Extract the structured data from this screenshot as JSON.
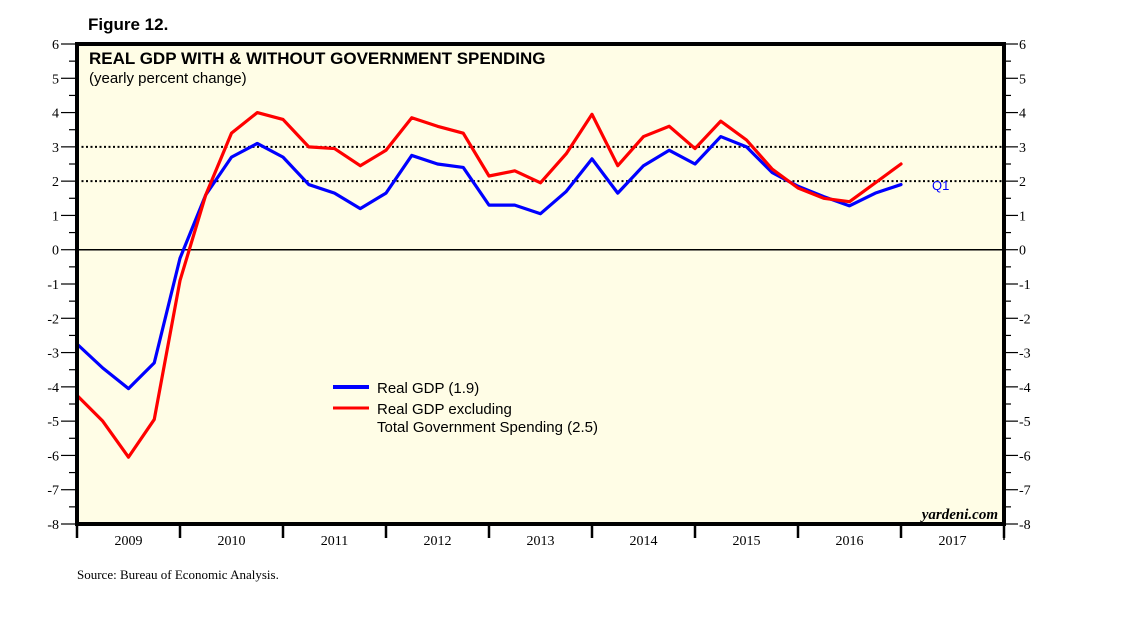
{
  "figure_label": "Figure 12.",
  "source_note": "Source: Bureau of Economic Analysis.",
  "watermark": "yardeni.com",
  "colors": {
    "plot_background": "#fffde6",
    "frame": "#000000",
    "series_real_gdp": "#0000ff",
    "series_excl_gov": "#ff0000",
    "end_label": "#0000ff"
  },
  "chart_data": {
    "type": "line",
    "title": "REAL GDP WITH & WITHOUT GOVERNMENT SPENDING",
    "subtitle": "(yearly percent change)",
    "xlabel": "",
    "ylabel": "",
    "ylim": [
      -8,
      6
    ],
    "yticks": [
      6,
      5,
      4,
      3,
      2,
      1,
      0,
      -1,
      -2,
      -3,
      -4,
      -5,
      -6,
      -7,
      -8
    ],
    "ytick_labels": [
      "6",
      "5",
      "4",
      "3",
      "2",
      "1",
      "0",
      "-1",
      "-2",
      "-3",
      "-4",
      "-5",
      "-6",
      "-7",
      "-8"
    ],
    "y_axes": [
      "left",
      "right"
    ],
    "xlim_years": [
      2009,
      2018
    ],
    "xtick_labels": [
      "2009",
      "2010",
      "2011",
      "2012",
      "2013",
      "2014",
      "2015",
      "2016",
      "2017"
    ],
    "reference_lines": [
      {
        "y": 3,
        "style": "dotted"
      },
      {
        "y": 2,
        "style": "dotted"
      },
      {
        "y": 0,
        "style": "solid"
      }
    ],
    "grid": false,
    "legend_position": "center-left",
    "x": [
      "2009Q1",
      "2009Q2",
      "2009Q3",
      "2009Q4",
      "2010Q1",
      "2010Q2",
      "2010Q3",
      "2010Q4",
      "2011Q1",
      "2011Q2",
      "2011Q3",
      "2011Q4",
      "2012Q1",
      "2012Q2",
      "2012Q3",
      "2012Q4",
      "2013Q1",
      "2013Q2",
      "2013Q3",
      "2013Q4",
      "2014Q1",
      "2014Q2",
      "2014Q3",
      "2014Q4",
      "2015Q1",
      "2015Q2",
      "2015Q3",
      "2015Q4",
      "2016Q1",
      "2016Q2",
      "2016Q3",
      "2016Q4",
      "2017Q1"
    ],
    "series": [
      {
        "name": "Real GDP (1.9)",
        "legend_lines": [
          "Real GDP (1.9)"
        ],
        "color": "#0000ff",
        "values": [
          -2.75,
          -3.45,
          -4.05,
          -3.3,
          -0.25,
          1.6,
          2.7,
          3.1,
          2.7,
          1.9,
          1.65,
          1.2,
          1.65,
          2.75,
          2.5,
          2.4,
          1.3,
          1.3,
          1.05,
          1.7,
          2.65,
          1.65,
          2.45,
          2.9,
          2.5,
          3.3,
          3.0,
          2.25,
          1.85,
          1.55,
          1.28,
          1.65,
          1.9
        ]
      },
      {
        "name": "Real GDP excluding Total Government Spending (2.5)",
        "legend_lines": [
          "Real GDP excluding",
          "Total Government Spending (2.5)"
        ],
        "color": "#ff0000",
        "values": [
          -4.25,
          -5.0,
          -6.05,
          -4.95,
          -0.9,
          1.6,
          3.4,
          4.0,
          3.8,
          3.0,
          2.95,
          2.45,
          2.9,
          3.85,
          3.6,
          3.4,
          2.15,
          2.3,
          1.95,
          2.8,
          3.95,
          2.45,
          3.3,
          3.6,
          2.95,
          3.75,
          3.2,
          2.35,
          1.8,
          1.5,
          1.4,
          1.95,
          2.5
        ]
      }
    ],
    "annotations": [
      {
        "text": "Q1",
        "attached_to": "Real GDP (1.9)",
        "at": "2017Q1"
      }
    ]
  }
}
